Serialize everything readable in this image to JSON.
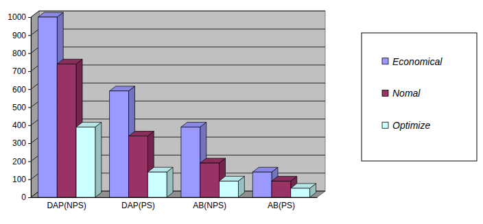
{
  "chart_data": {
    "type": "bar",
    "categories": [
      "DAP(NPS)",
      "DAP(PS)",
      "AB(NPS)",
      "AB(PS)"
    ],
    "series": [
      {
        "name": "Economical",
        "color": "#9999ff",
        "values": [
          1000,
          590,
          390,
          140
        ]
      },
      {
        "name": "Nomal",
        "color": "#993366",
        "values": [
          740,
          340,
          190,
          90
        ]
      },
      {
        "name": "Optimize",
        "color": "#ccffff",
        "values": [
          390,
          140,
          90,
          50
        ]
      }
    ],
    "ylim": [
      0,
      1000
    ],
    "yticks": [
      0,
      100,
      200,
      300,
      400,
      500,
      600,
      700,
      800,
      900,
      1000
    ],
    "grid": true,
    "legend": "right"
  }
}
